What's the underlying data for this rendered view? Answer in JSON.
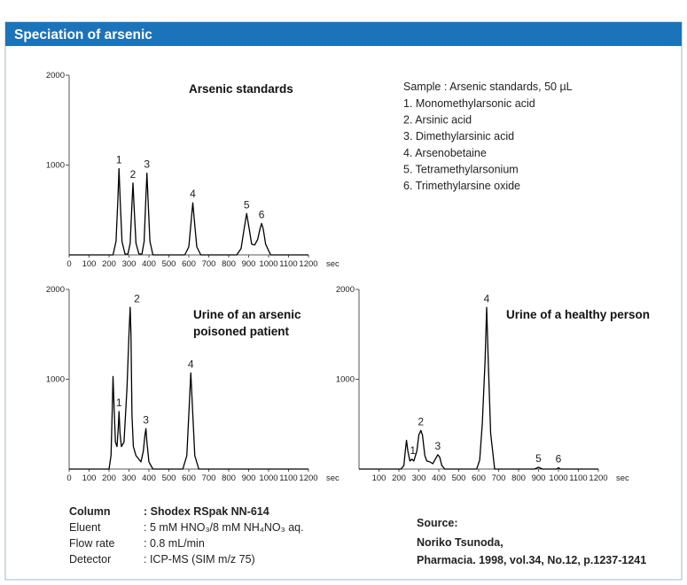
{
  "header": {
    "title": "Speciation of arsenic"
  },
  "sample": {
    "title": "Sample : Arsenic standards, 50 µL",
    "items": [
      "1. Monomethylarsonic acid",
      "2. Arsinic acid",
      "3. Dimethylarsinic acid",
      "4. Arsenobetaine",
      "5. Tetramethylarsonium",
      "6. Trimethylarsine oxide"
    ]
  },
  "conditions": [
    {
      "label": "Column",
      "value": ": Shodex RSpak NN-614"
    },
    {
      "label": "Eluent",
      "value": ": 5 mM HNO₃/8 mM NH₄NO₃ aq."
    },
    {
      "label": "Flow rate",
      "value": ": 0.8 mL/min"
    },
    {
      "label": "Detector",
      "value": ": ICP-MS (SIM m/z 75)"
    }
  ],
  "source": {
    "label": "Source:",
    "lines": [
      "Noriko Tsunoda,",
      "Pharmacia. 1998, vol.34, No.12, p.1237-1241"
    ]
  },
  "chart_data": [
    {
      "type": "line",
      "title": "Arsenic standards",
      "x_label": "sec",
      "color": "#000000",
      "x": [
        0,
        220,
        235,
        244,
        250,
        256,
        265,
        280,
        295,
        306,
        314,
        320,
        326,
        335,
        350,
        365,
        376,
        384,
        390,
        396,
        405,
        420,
        580,
        600,
        612,
        620,
        628,
        640,
        660,
        840,
        862,
        878,
        890,
        902,
        915,
        930,
        945,
        957,
        965,
        973,
        985,
        1010,
        1200
      ],
      "values": [
        0,
        0,
        150,
        600,
        960,
        600,
        150,
        10,
        10,
        130,
        520,
        800,
        520,
        130,
        10,
        10,
        150,
        600,
        910,
        600,
        150,
        0,
        0,
        90,
        380,
        580,
        380,
        90,
        0,
        0,
        70,
        300,
        460,
        300,
        120,
        110,
        170,
        290,
        350,
        290,
        120,
        0,
        0
      ],
      "xlim": [
        0,
        1200
      ],
      "xticks": [
        0,
        100,
        200,
        300,
        400,
        500,
        600,
        700,
        800,
        900,
        1000,
        1100,
        1200
      ],
      "ylim": [
        0,
        2000
      ],
      "yticks": [
        1000,
        2000
      ],
      "annotations": [
        {
          "text": "1",
          "x": 250,
          "y": 960
        },
        {
          "text": "2",
          "x": 320,
          "y": 800
        },
        {
          "text": "3",
          "x": 390,
          "y": 910
        },
        {
          "text": "4",
          "x": 620,
          "y": 580
        },
        {
          "text": "5",
          "x": 890,
          "y": 460
        },
        {
          "text": "6",
          "x": 965,
          "y": 350
        }
      ]
    },
    {
      "type": "line",
      "title": "Urine of an arsenic poisoned patient",
      "x_label": "sec",
      "color": "#000000",
      "x": [
        0,
        200,
        210,
        216,
        220,
        226,
        232,
        240,
        246,
        250,
        255,
        262,
        275,
        290,
        300,
        306,
        310,
        315,
        322,
        335,
        360,
        372,
        380,
        385,
        390,
        400,
        420,
        570,
        590,
        602,
        610,
        618,
        630,
        650,
        1200
      ],
      "values": [
        0,
        0,
        150,
        650,
        1030,
        650,
        300,
        250,
        450,
        640,
        400,
        250,
        300,
        900,
        1500,
        1800,
        1500,
        600,
        250,
        150,
        80,
        200,
        380,
        450,
        300,
        80,
        0,
        0,
        150,
        700,
        1070,
        700,
        150,
        0,
        0
      ],
      "xlim": [
        0,
        1200
      ],
      "xticks": [
        0,
        100,
        200,
        300,
        400,
        500,
        600,
        700,
        800,
        900,
        1000,
        1100,
        1200
      ],
      "ylim": [
        0,
        2000
      ],
      "yticks": [
        1000,
        2000
      ],
      "annotations": [
        {
          "text": "1",
          "x": 250,
          "y": 640
        },
        {
          "text": "2",
          "x": 340,
          "y": 1800
        },
        {
          "text": "3",
          "x": 385,
          "y": 450
        },
        {
          "text": "4",
          "x": 610,
          "y": 1070
        }
      ]
    },
    {
      "type": "line",
      "title": "Urine of a healthy person",
      "x_label": "sec",
      "color": "#000000",
      "x": [
        0,
        210,
        225,
        232,
        238,
        245,
        255,
        265,
        275,
        290,
        300,
        310,
        318,
        330,
        340,
        355,
        370,
        385,
        395,
        405,
        415,
        430,
        590,
        605,
        618,
        632,
        640,
        648,
        660,
        680,
        880,
        900,
        920,
        990,
        1000,
        1010,
        1200
      ],
      "values": [
        0,
        0,
        40,
        200,
        320,
        200,
        90,
        110,
        90,
        200,
        380,
        430,
        380,
        150,
        90,
        80,
        60,
        120,
        160,
        130,
        40,
        0,
        0,
        100,
        500,
        1200,
        1800,
        1200,
        400,
        0,
        0,
        20,
        0,
        0,
        15,
        0,
        0
      ],
      "xlim": [
        0,
        1200
      ],
      "xticks": [
        100,
        200,
        300,
        400,
        500,
        600,
        700,
        800,
        900,
        1000,
        1100,
        1200
      ],
      "ylim": [
        0,
        2000
      ],
      "yticks": [
        1000,
        2000
      ],
      "annotations": [
        {
          "text": "1",
          "x": 270,
          "y": 110
        },
        {
          "text": "2",
          "x": 310,
          "y": 430
        },
        {
          "text": "3",
          "x": 395,
          "y": 160
        },
        {
          "text": "4",
          "x": 640,
          "y": 1800
        },
        {
          "text": "5",
          "x": 900,
          "y": 20
        },
        {
          "text": "6",
          "x": 1000,
          "y": 15
        }
      ]
    }
  ]
}
